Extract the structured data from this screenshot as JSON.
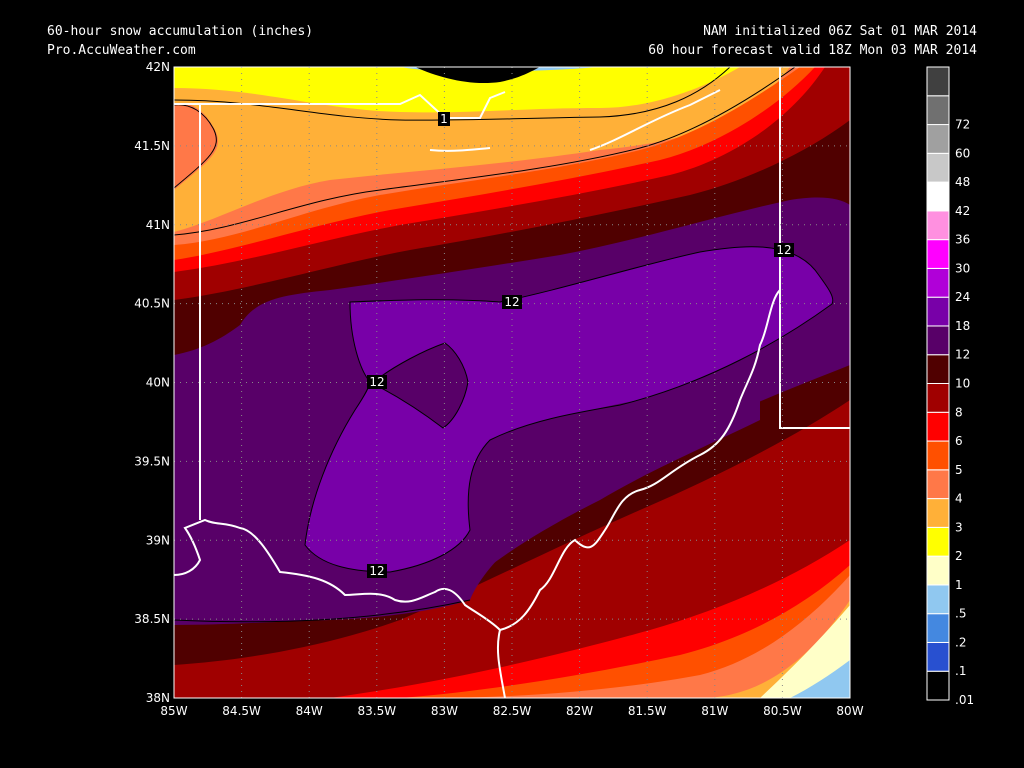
{
  "header": {
    "title": "60-hour snow accumulation (inches)",
    "source": "Pro.AccuWeather.com",
    "model_init": "NAM initialized 06Z Sat 01 MAR 2014",
    "valid_time": "60 hour forecast valid 18Z Mon 03 MAR 2014"
  },
  "map": {
    "lat_ticks": [
      "42N",
      "41.5N",
      "41N",
      "40.5N",
      "40N",
      "39.5N",
      "39N",
      "38.5N",
      "38N"
    ],
    "lon_ticks": [
      "85W",
      "84.5W",
      "84W",
      "83.5W",
      "83W",
      "82.5W",
      "82W",
      "81.5W",
      "81W",
      "80.5W",
      "80W"
    ],
    "lat_range": [
      38,
      42
    ],
    "lon_range": [
      -85,
      -80
    ],
    "contour_labels": [
      "1",
      "12",
      "12",
      "12",
      "12"
    ]
  },
  "colorbar": {
    "bins": [
      {
        "label": ".01",
        "color": "#000000"
      },
      {
        "label": ".1",
        "color": "#2850d0"
      },
      {
        "label": ".2",
        "color": "#4488e0"
      },
      {
        "label": ".5",
        "color": "#90c8f0"
      },
      {
        "label": "1",
        "color": "#ffffc8"
      },
      {
        "label": "2",
        "color": "#ffff00"
      },
      {
        "label": "3",
        "color": "#ffb038"
      },
      {
        "label": "4",
        "color": "#ff7848"
      },
      {
        "label": "5",
        "color": "#ff5000"
      },
      {
        "label": "6",
        "color": "#ff0000"
      },
      {
        "label": "8",
        "color": "#a00000"
      },
      {
        "label": "10",
        "color": "#500000"
      },
      {
        "label": "12",
        "color": "#580068"
      },
      {
        "label": "18",
        "color": "#7800a8"
      },
      {
        "label": "24",
        "color": "#b000d8"
      },
      {
        "label": "30",
        "color": "#ff00ff"
      },
      {
        "label": "36",
        "color": "#ff90e0"
      },
      {
        "label": "42",
        "color": "#ffffff"
      },
      {
        "label": "48",
        "color": "#c8c8c8"
      },
      {
        "label": "60",
        "color": "#a0a0a0"
      },
      {
        "label": "72",
        "color": "#707070"
      },
      {
        "label": "",
        "color": "#404040"
      }
    ]
  }
}
